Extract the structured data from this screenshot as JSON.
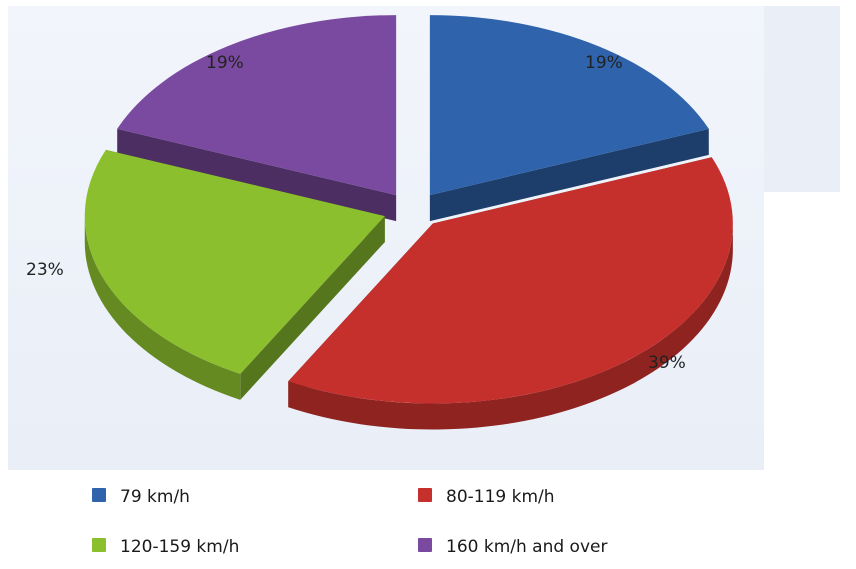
{
  "chart_data": {
    "type": "pie",
    "title": "",
    "categories": [
      "79 km/h",
      "80-119 km/h",
      "120-159 km/h",
      "160 km/h and over"
    ],
    "values": [
      19,
      39,
      23,
      19
    ],
    "data_labels": [
      "19%",
      "39%",
      "23%",
      "19%"
    ],
    "colors": [
      "#2f64ad",
      "#c5302d",
      "#8bbf2e",
      "#7a4aa0"
    ],
    "exploded": true,
    "three_d": true,
    "legend": {
      "position": "bottom",
      "items": [
        {
          "label": "79 km/h",
          "color": "#2f64ad"
        },
        {
          "label": "80-119 km/h",
          "color": "#c5302d"
        },
        {
          "label": "120-159 km/h",
          "color": "#8bbf2e"
        },
        {
          "label": "160 km/h and over",
          "color": "#7a4aa0"
        }
      ]
    }
  }
}
